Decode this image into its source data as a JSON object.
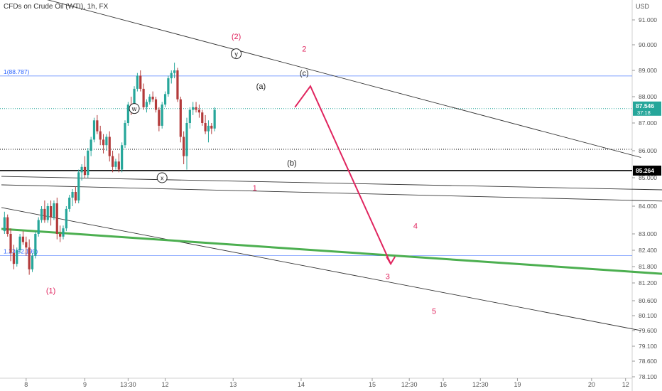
{
  "symbol_title": "CFDs on Crude Oil (WTI), 1h, FX",
  "currency": "USD",
  "colors": {
    "bull": "#26a69a",
    "bear": "#b33a3a",
    "wave_red": "#e0245e",
    "green_line": "#4caf50",
    "blue_level": "#2962ff",
    "trendline": "#333333",
    "price_badge": "#26a69a"
  },
  "chart_data": {
    "type": "candlestick",
    "ylim": [
      77.9,
      92.2
    ],
    "y_ticks": [
      "91.000",
      "90.000",
      "89.000",
      "88.000",
      "87.000",
      "86.000",
      "85.000",
      "84.000",
      "83.000",
      "82.400",
      "81.800",
      "81.200",
      "80.600",
      "80.100",
      "79.600",
      "79.100",
      "78.600",
      "78.100"
    ],
    "y_tick_values": [
      91.0,
      90.0,
      89.0,
      88.0,
      87.0,
      86.0,
      85.0,
      84.0,
      83.0,
      82.4,
      81.8,
      81.2,
      80.6,
      80.1,
      79.6,
      79.1,
      78.6,
      78.1
    ],
    "x_ticks": [
      {
        "label": "8",
        "t": 8
      },
      {
        "label": "9",
        "t": 27
      },
      {
        "label": "13:30",
        "t": 41
      },
      {
        "label": "12",
        "t": 53
      },
      {
        "label": "13",
        "t": 75
      },
      {
        "label": "14",
        "t": 97
      },
      {
        "label": "15",
        "t": 120
      },
      {
        "label": "12:30",
        "t": 132
      },
      {
        "label": "16",
        "t": 143
      },
      {
        "label": "12:30",
        "t": 155
      },
      {
        "label": "19",
        "t": 167
      },
      {
        "label": "20",
        "t": 191
      },
      {
        "label": "12",
        "t": 202
      }
    ],
    "current_price": {
      "value": "87.546",
      "sub": "37:18",
      "y": 87.546
    },
    "level_price": {
      "value": "85.264",
      "y": 85.264
    },
    "fib_levels": [
      {
        "label": "1(88.787)",
        "y": 88.787
      },
      {
        "label": "1.23(82.199)",
        "y": 82.199
      }
    ],
    "candles": [
      [
        83.1,
        83.8,
        83.0,
        83.6
      ],
      [
        83.6,
        83.7,
        82.9,
        83.0
      ],
      [
        83.0,
        83.2,
        82.0,
        82.3
      ],
      [
        82.3,
        82.6,
        81.7,
        81.9
      ],
      [
        81.9,
        82.5,
        81.8,
        82.4
      ],
      [
        82.4,
        83.0,
        82.3,
        82.9
      ],
      [
        82.9,
        83.1,
        82.6,
        82.7
      ],
      [
        82.7,
        82.9,
        82.2,
        82.5
      ],
      [
        82.5,
        82.8,
        81.5,
        81.7
      ],
      [
        81.7,
        82.3,
        81.6,
        82.2
      ],
      [
        82.2,
        83.1,
        82.1,
        83.0
      ],
      [
        83.0,
        83.6,
        82.9,
        83.5
      ],
      [
        83.5,
        84.0,
        83.4,
        83.9
      ],
      [
        83.9,
        84.2,
        83.4,
        83.5
      ],
      [
        83.5,
        84.1,
        83.4,
        84.0
      ],
      [
        84.0,
        84.2,
        83.3,
        83.6
      ],
      [
        83.6,
        84.2,
        83.5,
        84.1
      ],
      [
        84.1,
        84.3,
        82.8,
        83.0
      ],
      [
        83.0,
        83.3,
        82.7,
        82.9
      ],
      [
        82.9,
        83.3,
        82.8,
        83.2
      ],
      [
        83.2,
        84.0,
        83.1,
        83.9
      ],
      [
        83.9,
        84.4,
        83.8,
        84.3
      ],
      [
        84.3,
        84.6,
        84.0,
        84.5
      ],
      [
        84.5,
        84.7,
        84.1,
        84.2
      ],
      [
        84.2,
        85.3,
        84.1,
        85.2
      ],
      [
        85.2,
        85.5,
        84.9,
        85.4
      ],
      [
        85.4,
        85.8,
        85.0,
        85.1
      ],
      [
        85.1,
        86.1,
        85.0,
        86.0
      ],
      [
        86.0,
        86.5,
        85.8,
        86.4
      ],
      [
        86.4,
        87.2,
        86.3,
        87.1
      ],
      [
        87.1,
        87.3,
        86.6,
        86.7
      ],
      [
        86.7,
        86.9,
        86.2,
        86.4
      ],
      [
        86.4,
        86.6,
        85.9,
        86.2
      ],
      [
        86.2,
        86.6,
        86.0,
        86.5
      ],
      [
        86.5,
        86.7,
        85.6,
        85.8
      ],
      [
        85.8,
        86.0,
        85.2,
        85.4
      ],
      [
        85.4,
        85.7,
        85.3,
        85.6
      ],
      [
        85.6,
        85.9,
        85.2,
        85.3
      ],
      [
        85.3,
        86.3,
        85.2,
        86.2
      ],
      [
        86.2,
        87.1,
        86.1,
        87.0
      ],
      [
        87.0,
        87.8,
        86.9,
        87.7
      ],
      [
        87.7,
        88.0,
        87.3,
        87.5
      ],
      [
        87.5,
        88.4,
        87.4,
        88.3
      ],
      [
        88.3,
        88.9,
        88.2,
        88.8
      ],
      [
        88.8,
        89.0,
        88.2,
        88.3
      ],
      [
        88.3,
        88.5,
        87.5,
        87.6
      ],
      [
        87.6,
        87.9,
        87.4,
        87.8
      ],
      [
        87.8,
        88.1,
        87.7,
        88.0
      ],
      [
        88.0,
        88.2,
        87.8,
        87.9
      ],
      [
        87.9,
        88.0,
        87.4,
        87.5
      ],
      [
        87.5,
        87.6,
        86.7,
        86.9
      ],
      [
        86.9,
        87.8,
        86.8,
        87.7
      ],
      [
        87.7,
        88.2,
        87.6,
        88.1
      ],
      [
        88.1,
        88.8,
        88.0,
        88.7
      ],
      [
        88.7,
        89.0,
        88.5,
        88.9
      ],
      [
        88.9,
        89.3,
        88.7,
        89.0
      ],
      [
        89.0,
        89.1,
        87.8,
        87.9
      ],
      [
        87.9,
        88.0,
        86.3,
        86.5
      ],
      [
        86.5,
        86.7,
        85.5,
        85.8
      ],
      [
        85.8,
        87.2,
        85.3,
        87.0
      ],
      [
        87.0,
        87.6,
        86.8,
        87.5
      ],
      [
        87.5,
        87.8,
        87.3,
        87.6
      ],
      [
        87.6,
        87.8,
        87.4,
        87.5
      ],
      [
        87.5,
        87.7,
        87.2,
        87.4
      ],
      [
        87.4,
        87.5,
        86.9,
        87.0
      ],
      [
        87.0,
        87.3,
        86.6,
        86.7
      ],
      [
        86.7,
        87.1,
        86.3,
        86.9
      ],
      [
        86.9,
        87.0,
        86.6,
        86.8
      ],
      [
        86.8,
        87.6,
        86.7,
        87.5
      ]
    ],
    "trendlines": [
      {
        "name": "upper-channel",
        "t0": 0,
        "y0": 92.3,
        "t1": 207,
        "y1": 85.75
      },
      {
        "name": "lower-channel",
        "t0": 0,
        "y0": 83.95,
        "t1": 207,
        "y1": 79.6
      },
      {
        "name": "mid-line-1",
        "t0": 0,
        "y0": 85.05,
        "t1": 225,
        "y1": 84.55
      },
      {
        "name": "mid-line-2",
        "t0": 0,
        "y0": 84.75,
        "t1": 225,
        "y1": 84.15
      }
    ],
    "green_line": {
      "t0": 0,
      "y0": 83.18,
      "t1": 225,
      "y1": 81.45
    },
    "forecast_path": [
      {
        "t": 95,
        "y": 87.6
      },
      {
        "t": 100,
        "y": 88.4
      },
      {
        "t": 126,
        "y": 81.9
      }
    ],
    "wave_labels": [
      {
        "text": "(1)",
        "t": 16,
        "y": 80.95,
        "style": "red"
      },
      {
        "text": "(2)",
        "t": 76,
        "y": 90.35,
        "style": "red"
      },
      {
        "text": "w",
        "t": 43,
        "y": 87.55,
        "style": "circle"
      },
      {
        "text": "x",
        "t": 52,
        "y": 85.0,
        "style": "circle"
      },
      {
        "text": "y",
        "t": 76,
        "y": 89.65,
        "style": "circle"
      },
      {
        "text": "(a)",
        "t": 84,
        "y": 88.4,
        "style": "dark"
      },
      {
        "text": "(b)",
        "t": 94,
        "y": 85.55,
        "style": "dark"
      },
      {
        "text": "(c)",
        "t": 98,
        "y": 88.9,
        "style": "dark"
      },
      {
        "text": "2",
        "t": 98,
        "y": 89.85,
        "style": "red"
      },
      {
        "text": "1",
        "t": 82,
        "y": 84.65,
        "style": "red"
      },
      {
        "text": "4",
        "t": 134,
        "y": 83.3,
        "style": "red"
      },
      {
        "text": "3",
        "t": 125,
        "y": 81.45,
        "style": "red"
      },
      {
        "text": "5",
        "t": 140,
        "y": 80.25,
        "style": "red"
      }
    ]
  }
}
